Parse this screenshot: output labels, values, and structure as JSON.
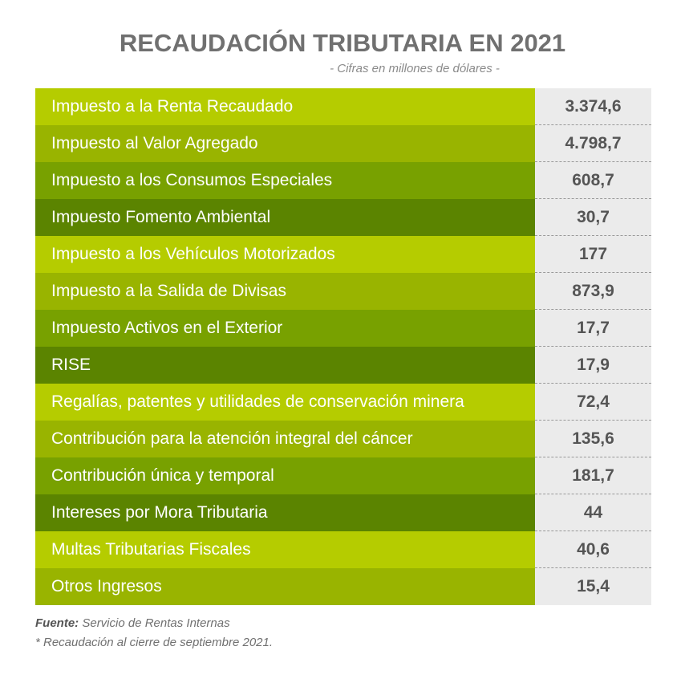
{
  "chart_data": {
    "type": "table",
    "title": "RECAUDACIÓN TRIBUTARIA EN 2021",
    "subtitle": "- Cifras en millones de dólares -",
    "rows": [
      {
        "label": "Impuesto a la Renta Recaudado",
        "value": "3.374,6"
      },
      {
        "label": "Impuesto al Valor Agregado",
        "value": "4.798,7"
      },
      {
        "label": "Impuesto a los Consumos Especiales",
        "value": "608,7"
      },
      {
        "label": "Impuesto Fomento Ambiental",
        "value": "30,7"
      },
      {
        "label": "Impuesto a los Vehículos Motorizados",
        "value": "177"
      },
      {
        "label": "Impuesto a la Salida de Divisas",
        "value": "873,9"
      },
      {
        "label": "Impuesto Activos en el Exterior",
        "value": "17,7"
      },
      {
        "label": "RISE",
        "value": "17,9"
      },
      {
        "label": "Regalías, patentes y utilidades de conservación minera",
        "value": "72,4"
      },
      {
        "label": "Contribución para la atención integral del cáncer",
        "value": "135,6"
      },
      {
        "label": "Contribución única y temporal",
        "value": "181,7"
      },
      {
        "label": "Intereses por Mora Tributaria",
        "value": "44"
      },
      {
        "label": "Multas Tributarias Fiscales",
        "value": "40,6"
      },
      {
        "label": "Otros Ingresos",
        "value": "15,4"
      }
    ],
    "row_colors": [
      "#b5cc00",
      "#99b400",
      "#78a100",
      "#5b8400"
    ],
    "source_label": "Fuente:",
    "source_text": "Servicio de Rentas Internas",
    "note": "* Recaudación al cierre de septiembre 2021."
  }
}
